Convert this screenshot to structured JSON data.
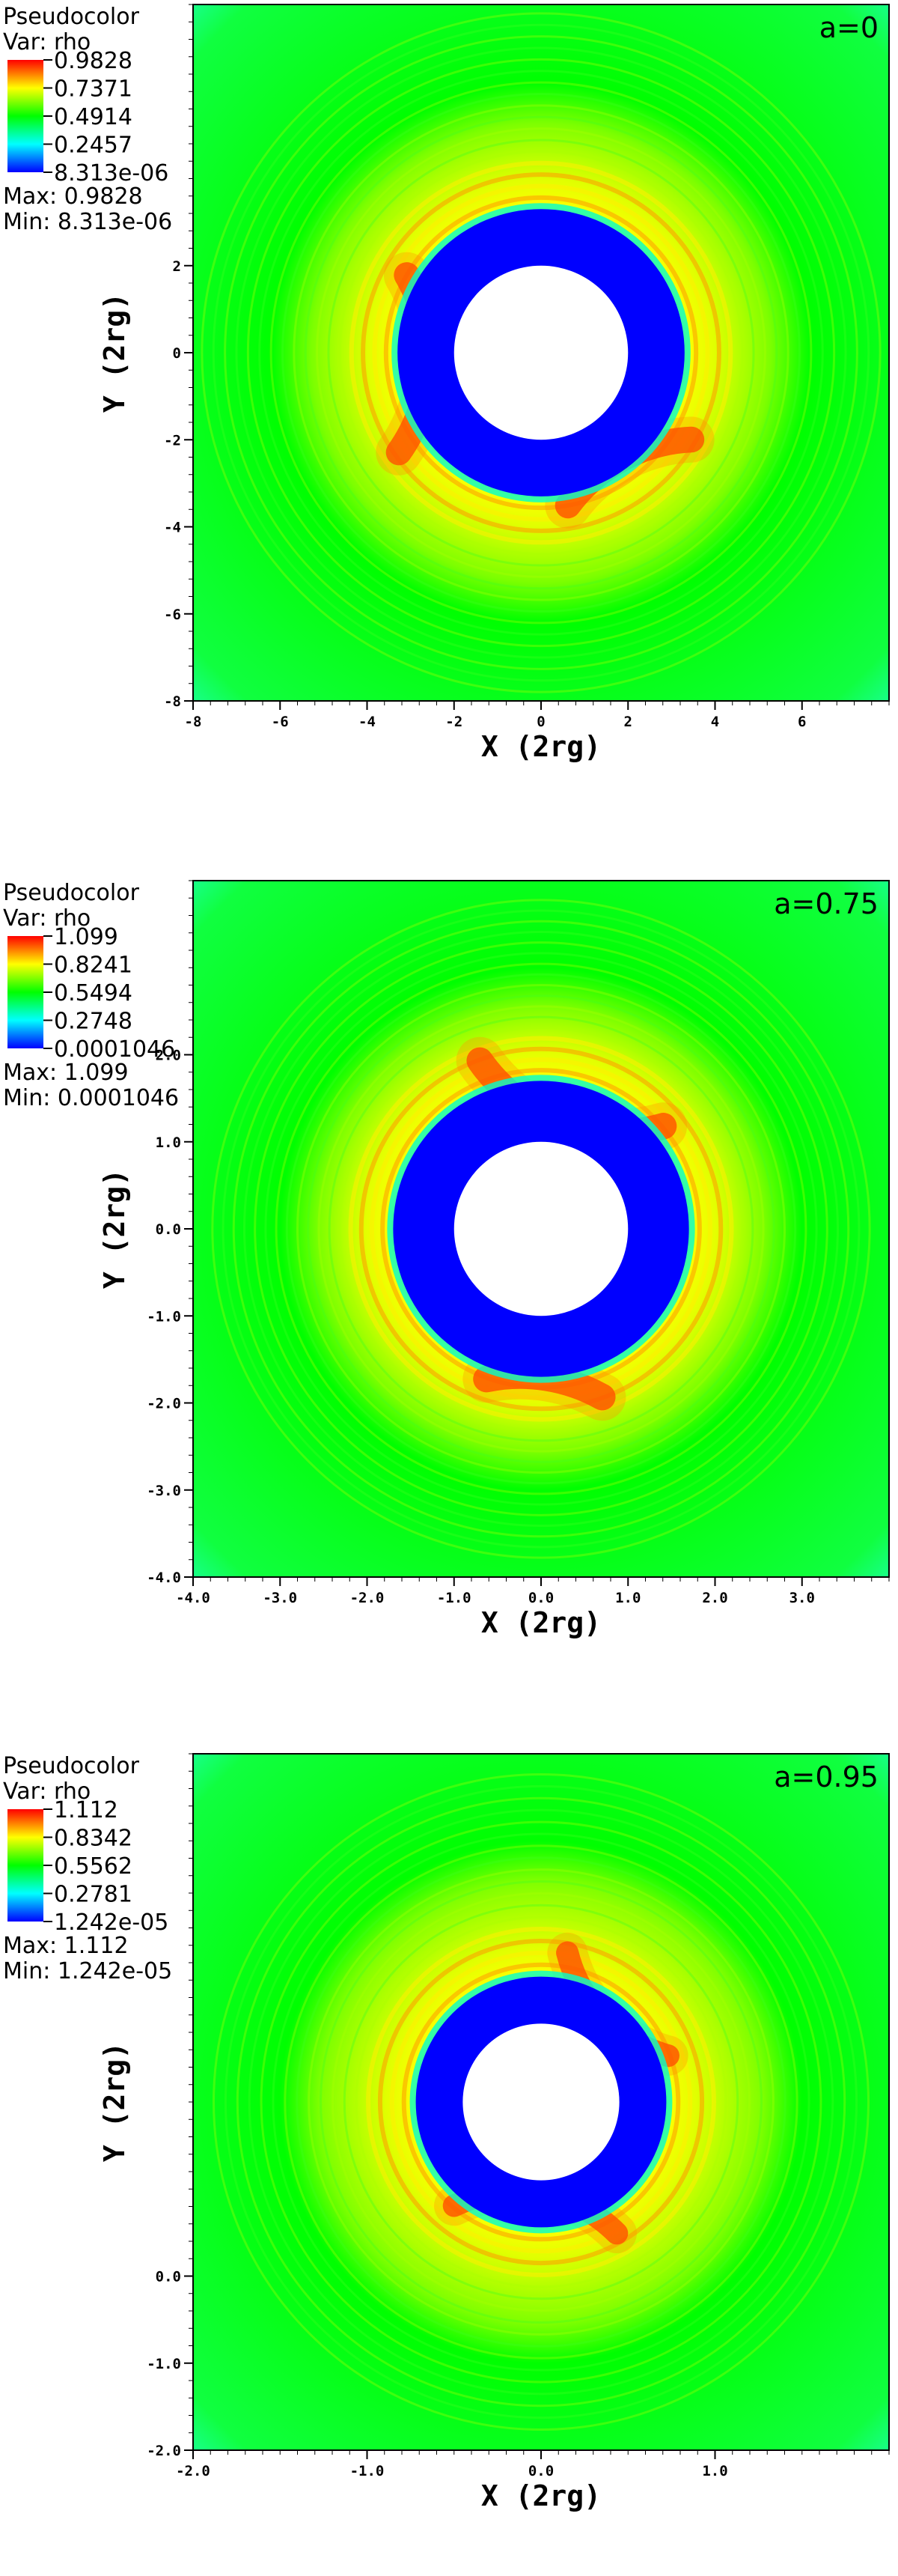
{
  "chart_data": [
    {
      "type": "heatmap",
      "legend": {
        "title": "Pseudocolor",
        "var": "Var: rho",
        "ticks": [
          "0.9828",
          "0.7371",
          "0.4914",
          "0.2457",
          "8.313e-06"
        ],
        "max": "Max:  0.9828",
        "min": "Min:  8.313e-06"
      },
      "spin_label": "a=0",
      "xlabel": "X  (2rg)",
      "ylabel": "Y  (2rg)",
      "xlim": [
        -8,
        8
      ],
      "ylim": [
        -8,
        8
      ],
      "xticks": [
        "-8",
        "-6",
        "-4",
        "-2",
        "0",
        "2",
        "4",
        "6"
      ],
      "yticks": [
        "-8",
        "-6",
        "-4",
        "-2",
        "0",
        "2"
      ],
      "colormap": [
        "#0000ff",
        "#00ffff",
        "#00ff00",
        "#ffff00",
        "#ff0000"
      ],
      "hole_radius": 2.0,
      "gap_outer_radius": 3.3,
      "ring_outer_radius": 6.2
    },
    {
      "type": "heatmap",
      "legend": {
        "title": "Pseudocolor",
        "var": "Var: rho",
        "ticks": [
          "1.099",
          "0.8241",
          "0.5494",
          "0.2748",
          "0.0001046"
        ],
        "max": "Max:  1.099",
        "min": "Min:  0.0001046"
      },
      "spin_label": "a=0.75",
      "xlabel": "X  (2rg)",
      "ylabel": "Y  (2rg)",
      "xlim": [
        -4,
        4
      ],
      "ylim": [
        -4,
        4
      ],
      "xticks": [
        "-4.0",
        "-3.0",
        "-2.0",
        "-1.0",
        "0.0",
        "1.0",
        "2.0",
        "3.0"
      ],
      "yticks": [
        "-4.0",
        "-3.0",
        "-2.0",
        "-1.0",
        "0.0",
        "1.0",
        "2.0"
      ],
      "colormap": [
        "#0000ff",
        "#00ffff",
        "#00ff00",
        "#ffff00",
        "#ff0000"
      ],
      "hole_radius": 1.0,
      "gap_outer_radius": 1.7,
      "ring_outer_radius": 3.0
    },
    {
      "type": "heatmap",
      "legend": {
        "title": "Pseudocolor",
        "var": "Var: rho",
        "ticks": [
          "1.112",
          "0.8342",
          "0.5562",
          "0.2781",
          "1.242e-05"
        ],
        "max": "Max:  1.112",
        "min": "Min:  1.242e-05"
      },
      "spin_label": "a=0.95",
      "xlabel": "X  (2rg)",
      "ylabel": "Y  (2rg)",
      "xlim": [
        -2,
        2
      ],
      "ylim": [
        -2,
        2
      ],
      "xticks": [
        "-2.0",
        "-1.0",
        "0.0",
        "1.0"
      ],
      "yticks": [
        "-2.0",
        "-1.0",
        "0.0"
      ],
      "colormap": [
        "#0000ff",
        "#00ffff",
        "#00ff00",
        "#ffff00",
        "#ff0000"
      ],
      "hole_radius": 0.45,
      "gap_outer_radius": 0.72,
      "ring_outer_radius": 1.5
    }
  ]
}
